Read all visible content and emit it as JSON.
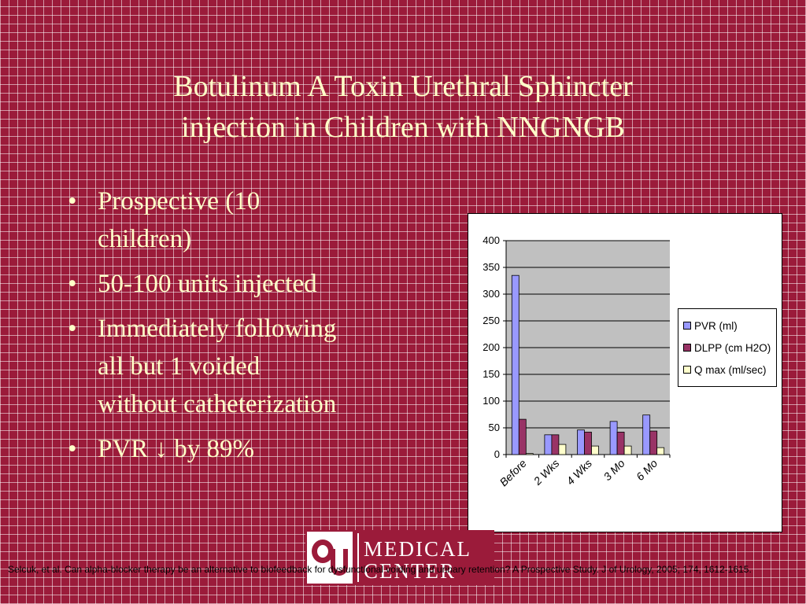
{
  "slide": {
    "title_line1": "Botulinum A Toxin Urethral Sphincter",
    "title_line2": "injection in Children with NNGNGB",
    "bullet_char": "•",
    "bullets": [
      {
        "line1": "Prospective (10",
        "line2": "children)"
      },
      {
        "line1": "50-100 units injected"
      },
      {
        "line1": "Immediately following",
        "line2": "all but 1 voided",
        "line3": "without catheterization"
      },
      {
        "line1": "PVR ↓ by 89%"
      }
    ],
    "logo_line1": "MEDICAL",
    "logo_line2": "CENTER",
    "citation": "Selcuk, et al.  Can alpha-blocker therapy be an alternative to biofeedback for dysfunctional voiding and urinary retention? A Prospective Study.  J of Urology, 2005; 174, 1612-1615."
  },
  "chart_data": {
    "type": "bar",
    "categories": [
      "Before",
      "2 Wks",
      "4 Wks",
      "3 Mo",
      "6 Mo"
    ],
    "series": [
      {
        "name": "PVR (ml)",
        "values": [
          335,
          37,
          46,
          62,
          74
        ],
        "color": "#9999ff"
      },
      {
        "name": "DLPP (cm H2O)",
        "values": [
          66,
          37,
          42,
          42,
          44
        ],
        "color": "#993366"
      },
      {
        "name": "Q max (ml/sec)",
        "values": [
          2,
          19,
          16,
          16,
          13
        ],
        "color": "#ffffcc"
      }
    ],
    "ylim": [
      0,
      400
    ],
    "yticks": [
      "0",
      "50",
      "100",
      "150",
      "200",
      "250",
      "300",
      "350",
      "400"
    ],
    "grid": true,
    "plot_background": "#c0c0c0",
    "legend_position": "right"
  }
}
